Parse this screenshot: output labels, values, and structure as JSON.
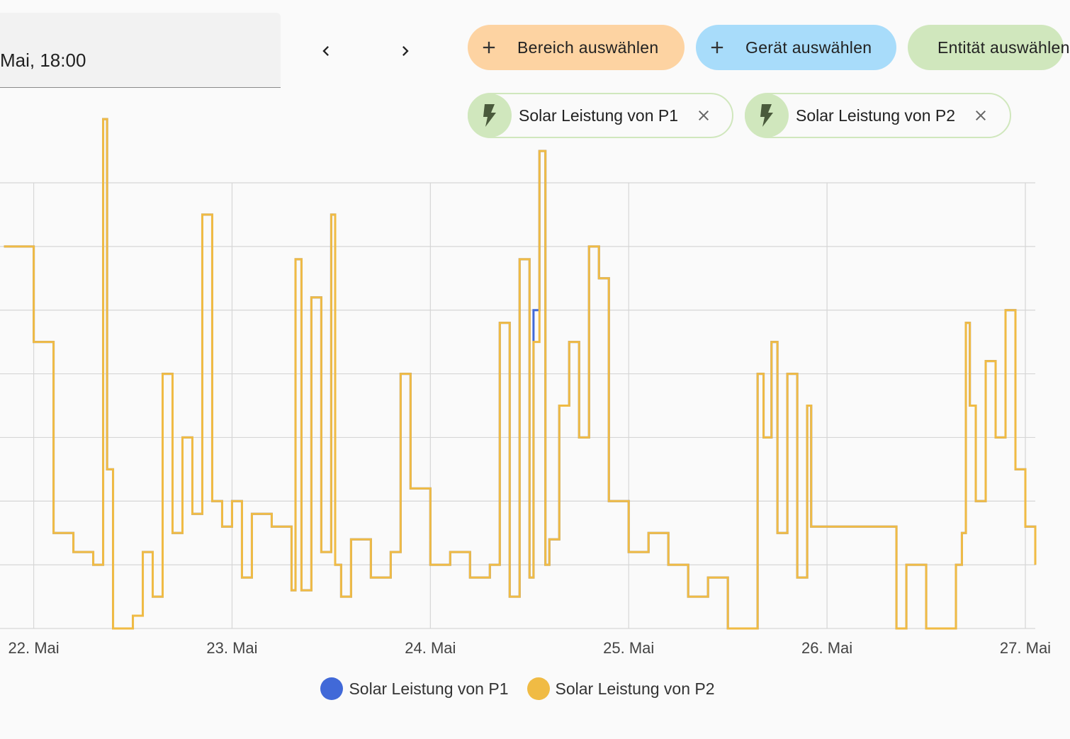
{
  "date_picker": {
    "value": "Mai, 18:00"
  },
  "nav": {
    "prev_icon": "chevron-left-icon",
    "next_icon": "chevron-right-icon"
  },
  "add_chips": [
    {
      "label": "Bereich auswählen",
      "color": "#fdd3a2"
    },
    {
      "label": "Gerät auswählen",
      "color": "#a8dcfa"
    },
    {
      "label": "Entität auswählen",
      "color": "#d0e7bd"
    }
  ],
  "selected_entities": [
    {
      "label": "Solar Leistung von P1",
      "icon": "flash-icon"
    },
    {
      "label": "Solar Leistung von P2",
      "icon": "flash-icon"
    }
  ],
  "legend": [
    {
      "label": "Solar Leistung von P1",
      "color": "#4169d8"
    },
    {
      "label": "Solar Leistung von P2",
      "color": "#f0bb44"
    }
  ],
  "chart_data": {
    "type": "line",
    "x_tick_labels": [
      "22. Mai",
      "23. Mai",
      "24. Mai",
      "25. Mai",
      "26. Mai",
      "27. Mai"
    ],
    "grid": true,
    "legend_position": "bottom",
    "series": [
      {
        "name": "Solar Leistung von P1",
        "color": "#4169d8"
      },
      {
        "name": "Solar Leistung von P2",
        "color": "#f0bb44"
      }
    ],
    "x": [
      21.85,
      22.0,
      22.1,
      22.2,
      22.3,
      22.35,
      22.37,
      22.4,
      22.5,
      22.55,
      22.6,
      22.65,
      22.7,
      22.75,
      22.8,
      22.85,
      22.9,
      22.95,
      23.0,
      23.05,
      23.1,
      23.2,
      23.3,
      23.32,
      23.35,
      23.4,
      23.45,
      23.5,
      23.52,
      23.55,
      23.6,
      23.7,
      23.8,
      23.85,
      23.9,
      24.0,
      24.1,
      24.2,
      24.3,
      24.35,
      24.4,
      24.45,
      24.5,
      24.52,
      24.55,
      24.58,
      24.6,
      24.65,
      24.7,
      24.75,
      24.8,
      24.85,
      24.9,
      25.0,
      25.1,
      25.2,
      25.3,
      25.4,
      25.5,
      25.6,
      25.65,
      25.68,
      25.72,
      25.75,
      25.8,
      25.85,
      25.9,
      25.92,
      26.0,
      26.2,
      26.35,
      26.4,
      26.5,
      26.6,
      26.65,
      26.68,
      26.7,
      26.72,
      26.75,
      26.8,
      26.85,
      26.9,
      26.95,
      27.0,
      27.05
    ],
    "values_p2": [
      60,
      45,
      15,
      12,
      10,
      80,
      25,
      0,
      2,
      12,
      5,
      40,
      15,
      30,
      18,
      65,
      20,
      16,
      20,
      8,
      18,
      16,
      6,
      58,
      6,
      52,
      12,
      65,
      10,
      5,
      14,
      8,
      12,
      40,
      22,
      10,
      12,
      8,
      10,
      48,
      5,
      58,
      8,
      45,
      75,
      10,
      14,
      35,
      45,
      30,
      60,
      55,
      20,
      12,
      15,
      10,
      5,
      8,
      0,
      0,
      40,
      30,
      45,
      15,
      40,
      8,
      35,
      16,
      16,
      16,
      0,
      10,
      0,
      0,
      10,
      15,
      48,
      35,
      20,
      42,
      30,
      50,
      25,
      16,
      10
    ],
    "values_p1": [
      60,
      45,
      15,
      12,
      10,
      80,
      25,
      0,
      2,
      12,
      5,
      40,
      15,
      30,
      18,
      65,
      20,
      16,
      20,
      8,
      18,
      16,
      6,
      58,
      6,
      52,
      12,
      65,
      10,
      5,
      14,
      8,
      12,
      40,
      22,
      10,
      12,
      8,
      10,
      48,
      5,
      58,
      8,
      50,
      75,
      10,
      14,
      35,
      45,
      30,
      60,
      55,
      20,
      12,
      15,
      10,
      5,
      8,
      0,
      0,
      40,
      30,
      45,
      15,
      40,
      8,
      35,
      16,
      16,
      16,
      0,
      10,
      0,
      0,
      10,
      15,
      48,
      35,
      20,
      42,
      30,
      50,
      25,
      16,
      10
    ],
    "xlim": [
      21.83,
      27.05
    ],
    "ylim": [
      0,
      70
    ]
  }
}
